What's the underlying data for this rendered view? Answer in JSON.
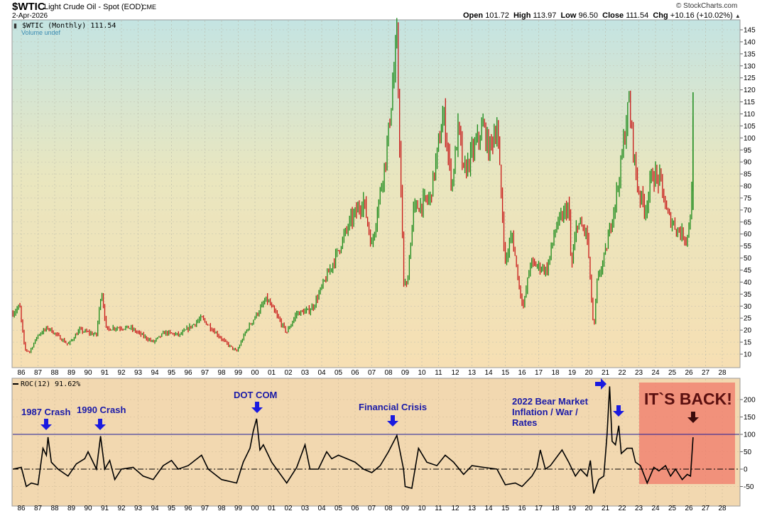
{
  "header": {
    "symbol": "$WTIC",
    "name": "Light Crude Oil - Spot (EOD)",
    "exchange": "CME",
    "date": "2-Apr-2026",
    "credit": "© StockCharts.com",
    "open_label": "Open",
    "open": "101.72",
    "high_label": "High",
    "high": "113.97",
    "low_label": "Low",
    "low": "96.50",
    "close_label": "Close",
    "close": "111.54",
    "chg_label": "Chg",
    "chg": "+10.16 (+10.02%)"
  },
  "colors": {
    "up": "#1a8a1a",
    "down": "#c81818",
    "roc_line": "#000000",
    "ref_line": "#1a1a9a",
    "annotation": "#1a1aa8",
    "highlight_box": "#f07a6a"
  },
  "chart_data": [
    {
      "type": "line",
      "legend": "$WTIC (Monthly) 111.54",
      "legend2": "Volume undef",
      "x_ticks": [
        "86",
        "87",
        "88",
        "89",
        "90",
        "91",
        "92",
        "93",
        "94",
        "95",
        "96",
        "97",
        "98",
        "99",
        "00",
        "01",
        "02",
        "03",
        "04",
        "05",
        "06",
        "07",
        "08",
        "09",
        "10",
        "11",
        "12",
        "13",
        "14",
        "15",
        "16",
        "17",
        "18",
        "19",
        "20",
        "21",
        "22",
        "23",
        "24",
        "25",
        "26",
        "27",
        "28"
      ],
      "ylim": [
        5,
        148
      ],
      "y_ticks": [
        10,
        15,
        20,
        25,
        30,
        35,
        40,
        45,
        50,
        55,
        60,
        65,
        70,
        75,
        80,
        85,
        90,
        95,
        100,
        105,
        110,
        115,
        120,
        125,
        130,
        135,
        140,
        145
      ],
      "grid": true,
      "points": [
        [
          1985.5,
          27
        ],
        [
          1985.9,
          30
        ],
        [
          1986.2,
          12
        ],
        [
          1986.5,
          11
        ],
        [
          1987.0,
          18
        ],
        [
          1987.6,
          21
        ],
        [
          1988.8,
          14
        ],
        [
          1989.5,
          20
        ],
        [
          1990.5,
          18
        ],
        [
          1990.8,
          37
        ],
        [
          1991.1,
          20
        ],
        [
          1991.5,
          21
        ],
        [
          1992.5,
          21
        ],
        [
          1993.9,
          15
        ],
        [
          1994.6,
          19
        ],
        [
          1995.5,
          18
        ],
        [
          1996.8,
          25
        ],
        [
          1997.5,
          20
        ],
        [
          1998.2,
          15
        ],
        [
          1998.9,
          11
        ],
        [
          1999.5,
          20
        ],
        [
          2000.7,
          33
        ],
        [
          2001.9,
          19
        ],
        [
          2002.5,
          27
        ],
        [
          2003.2,
          28
        ],
        [
          2003.5,
          30
        ],
        [
          2004.8,
          50
        ],
        [
          2005.7,
          65
        ],
        [
          2006.5,
          74
        ],
        [
          2007.0,
          55
        ],
        [
          2007.9,
          95
        ],
        [
          2008.5,
          140
        ],
        [
          2008.9,
          40
        ],
        [
          2009.1,
          38
        ],
        [
          2009.5,
          70
        ],
        [
          2010.5,
          75
        ],
        [
          2011.3,
          110
        ],
        [
          2011.8,
          80
        ],
        [
          2012.2,
          105
        ],
        [
          2012.5,
          85
        ],
        [
          2013.7,
          105
        ],
        [
          2014.0,
          95
        ],
        [
          2014.5,
          105
        ],
        [
          2015.0,
          48
        ],
        [
          2015.4,
          60
        ],
        [
          2015.9,
          35
        ],
        [
          2016.1,
          30
        ],
        [
          2016.5,
          48
        ],
        [
          2017.5,
          45
        ],
        [
          2018.0,
          62
        ],
        [
          2018.8,
          72
        ],
        [
          2018.95,
          45
        ],
        [
          2019.3,
          65
        ],
        [
          2019.9,
          60
        ],
        [
          2020.3,
          19
        ],
        [
          2020.5,
          40
        ],
        [
          2021.0,
          52
        ],
        [
          2021.8,
          82
        ],
        [
          2022.4,
          115
        ],
        [
          2022.9,
          80
        ],
        [
          2023.4,
          70
        ],
        [
          2023.8,
          85
        ],
        [
          2024.3,
          82
        ],
        [
          2024.7,
          68
        ],
        [
          2025.3,
          62
        ],
        [
          2025.9,
          58
        ],
        [
          2026.0,
          65
        ],
        [
          2026.15,
          70
        ],
        [
          2026.25,
          111.54
        ]
      ]
    },
    {
      "type": "line",
      "legend": "ROC(12) 91.62%",
      "ylim": [
        -75,
        245
      ],
      "y_ticks": [
        -50,
        0,
        50,
        100,
        150,
        200
      ],
      "reference_lines": [
        {
          "value": 100,
          "style": "solid"
        },
        {
          "value": 0,
          "style": "dash-dot"
        }
      ],
      "grid": true,
      "points": [
        [
          1985.5,
          0
        ],
        [
          1986.0,
          5
        ],
        [
          1986.3,
          -50
        ],
        [
          1986.6,
          -40
        ],
        [
          1987.0,
          -45
        ],
        [
          1987.3,
          60
        ],
        [
          1987.5,
          40
        ],
        [
          1987.6,
          92
        ],
        [
          1987.8,
          20
        ],
        [
          1988.2,
          0
        ],
        [
          1988.8,
          -20
        ],
        [
          1989.3,
          15
        ],
        [
          1989.8,
          30
        ],
        [
          1990.0,
          50
        ],
        [
          1990.5,
          0
        ],
        [
          1990.75,
          95
        ],
        [
          1991.0,
          0
        ],
        [
          1991.3,
          25
        ],
        [
          1991.6,
          -30
        ],
        [
          1992.0,
          0
        ],
        [
          1992.7,
          5
        ],
        [
          1993.3,
          -20
        ],
        [
          1993.9,
          -30
        ],
        [
          1994.5,
          10
        ],
        [
          1995.0,
          25
        ],
        [
          1995.4,
          0
        ],
        [
          1996.0,
          10
        ],
        [
          1996.8,
          40
        ],
        [
          1997.2,
          0
        ],
        [
          1998.0,
          -30
        ],
        [
          1998.9,
          -40
        ],
        [
          1999.3,
          20
        ],
        [
          1999.7,
          60
        ],
        [
          1999.9,
          110
        ],
        [
          2000.1,
          145
        ],
        [
          2000.3,
          55
        ],
        [
          2000.5,
          70
        ],
        [
          2001.0,
          20
        ],
        [
          2001.9,
          -40
        ],
        [
          2002.5,
          5
        ],
        [
          2003.0,
          70
        ],
        [
          2003.3,
          0
        ],
        [
          2003.8,
          0
        ],
        [
          2004.3,
          50
        ],
        [
          2004.6,
          30
        ],
        [
          2005.0,
          40
        ],
        [
          2005.5,
          30
        ],
        [
          2006.0,
          20
        ],
        [
          2006.5,
          0
        ],
        [
          2007.0,
          -10
        ],
        [
          2007.5,
          10
        ],
        [
          2008.0,
          50
        ],
        [
          2008.5,
          97
        ],
        [
          2008.9,
          0
        ],
        [
          2009.0,
          -50
        ],
        [
          2009.4,
          -55
        ],
        [
          2009.8,
          60
        ],
        [
          2010.3,
          20
        ],
        [
          2010.9,
          10
        ],
        [
          2011.4,
          40
        ],
        [
          2011.9,
          20
        ],
        [
          2012.5,
          -15
        ],
        [
          2013.0,
          10
        ],
        [
          2013.7,
          5
        ],
        [
          2014.5,
          0
        ],
        [
          2015.0,
          -45
        ],
        [
          2015.6,
          -40
        ],
        [
          2016.0,
          -50
        ],
        [
          2016.6,
          -20
        ],
        [
          2016.9,
          5
        ],
        [
          2017.1,
          55
        ],
        [
          2017.4,
          0
        ],
        [
          2017.7,
          10
        ],
        [
          2018.4,
          55
        ],
        [
          2018.8,
          20
        ],
        [
          2019.2,
          -20
        ],
        [
          2019.5,
          0
        ],
        [
          2019.9,
          -20
        ],
        [
          2020.1,
          25
        ],
        [
          2020.3,
          -70
        ],
        [
          2020.6,
          -30
        ],
        [
          2020.9,
          -20
        ],
        [
          2021.1,
          100
        ],
        [
          2021.25,
          238
        ],
        [
          2021.4,
          80
        ],
        [
          2021.6,
          70
        ],
        [
          2021.8,
          125
        ],
        [
          2021.95,
          45
        ],
        [
          2022.3,
          60
        ],
        [
          2022.6,
          60
        ],
        [
          2022.8,
          20
        ],
        [
          2023.1,
          10
        ],
        [
          2023.5,
          -40
        ],
        [
          2023.9,
          5
        ],
        [
          2024.2,
          -5
        ],
        [
          2024.6,
          10
        ],
        [
          2024.9,
          -20
        ],
        [
          2025.2,
          0
        ],
        [
          2025.6,
          -30
        ],
        [
          2025.9,
          -15
        ],
        [
          2026.1,
          -20
        ],
        [
          2026.25,
          91.62
        ]
      ],
      "annotations": [
        {
          "text": "1987 Crash",
          "date": 1987.6,
          "value": 92
        },
        {
          "text": "1990 Crash",
          "date": 1990.75,
          "value": 95
        },
        {
          "text": "DOT COM",
          "date": 2000.1,
          "value": 145
        },
        {
          "text": "Financial Crisis",
          "date": 2008.5,
          "value": 97
        },
        {
          "text": "2022 Bear Market",
          "text2": "Inflation / War /",
          "text3": "Rates"
        },
        {
          "text": "IT`S BACK!",
          "date": 2026.25,
          "value": 91.62
        }
      ]
    }
  ]
}
